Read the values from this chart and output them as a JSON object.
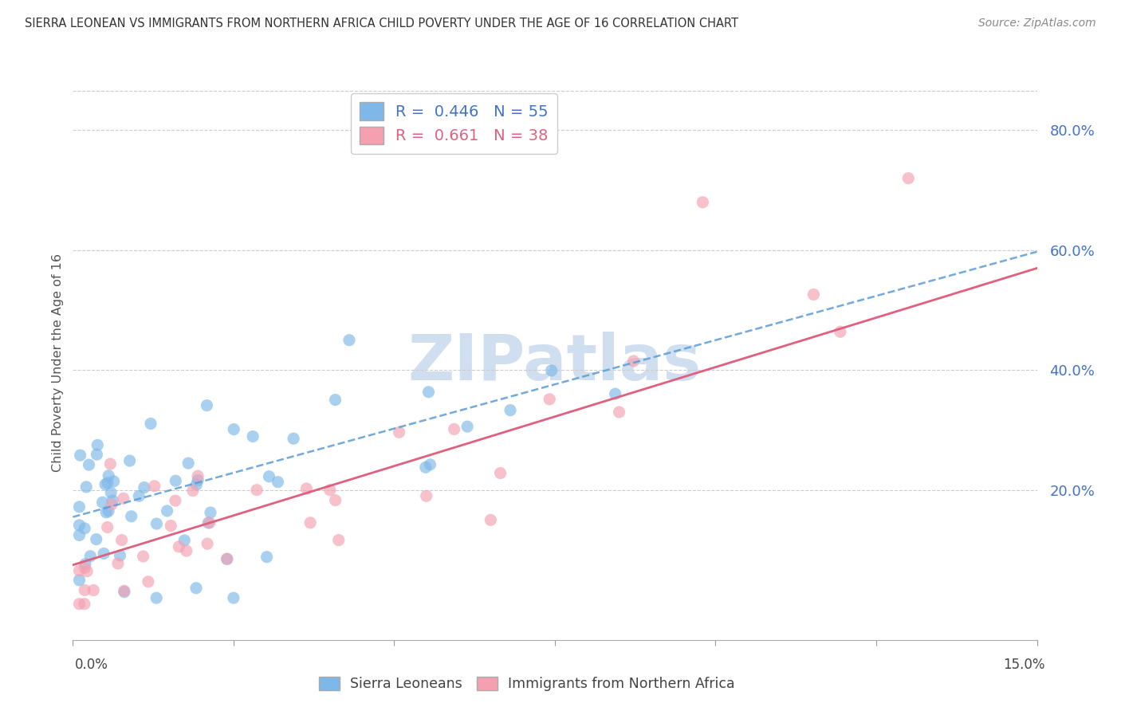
{
  "title": "SIERRA LEONEAN VS IMMIGRANTS FROM NORTHERN AFRICA CHILD POVERTY UNDER THE AGE OF 16 CORRELATION CHART",
  "source": "Source: ZipAtlas.com",
  "ylabel_label": "Child Poverty Under the Age of 16",
  "ytick_labels": [
    "20.0%",
    "40.0%",
    "60.0%",
    "80.0%"
  ],
  "ytick_values": [
    0.2,
    0.4,
    0.6,
    0.8
  ],
  "xlim": [
    0.0,
    0.15
  ],
  "ylim": [
    -0.05,
    0.875
  ],
  "sierra_leone_color": "#7db8e8",
  "north_africa_color": "#f4a0b0",
  "trend_sierra_color": "#5b9bd5",
  "trend_africa_color": "#e06080",
  "watermark": "ZIPatlas",
  "watermark_color": "#d0dff0",
  "grid_color": "#cccccc",
  "title_color": "#333333",
  "ytick_color": "#4472c4",
  "ylabel_color": "#555555",
  "source_color": "#888888",
  "legend_label1": "R =  0.446   N = 55",
  "legend_label2": "R =  0.661   N = 38",
  "legend_color1": "#4472c4",
  "legend_color2": "#e06080",
  "bottom_label1": "Sierra Leoneans",
  "bottom_label2": "Immigrants from Northern Africa",
  "sl_intercept": 0.155,
  "sl_slope": 2.95,
  "na_intercept": 0.075,
  "na_slope": 3.3,
  "scatter_size": 120,
  "scatter_alpha": 0.65
}
